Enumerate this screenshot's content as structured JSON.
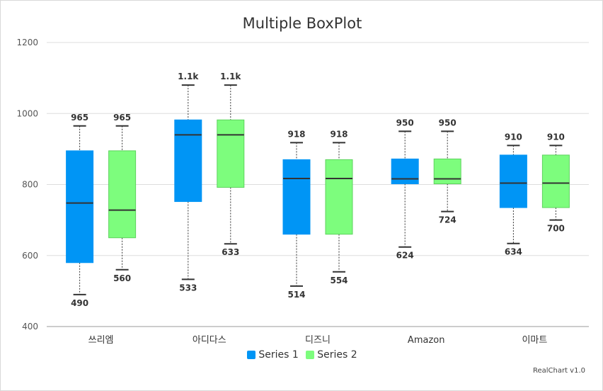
{
  "colors": {
    "series1": "#0095f5",
    "series2": "#7dfd7d",
    "series2_border": "#5ed35e",
    "grid": "#dddddd",
    "median": "#333333",
    "whisker": "#333333"
  },
  "credits": "RealChart v1.0",
  "chart_data": {
    "type": "boxplot",
    "title": "Multiple BoxPlot",
    "categories": [
      "쓰리엠",
      "아디다스",
      "디즈니",
      "Amazon",
      "이마트"
    ],
    "ylim": [
      400,
      1200
    ],
    "yticks": [
      400,
      600,
      800,
      1000,
      1200
    ],
    "grid": true,
    "legend_position": "bottom",
    "series": [
      {
        "name": "Series 1",
        "boxes": [
          {
            "min": 490,
            "q1": 580,
            "median": 748,
            "q3": 895,
            "max": 965,
            "min_label": "490",
            "max_label": "965"
          },
          {
            "min": 533,
            "q1": 752,
            "median": 940,
            "q3": 982,
            "max": 1080,
            "min_label": "533",
            "max_label": "1.1k"
          },
          {
            "min": 514,
            "q1": 660,
            "median": 817,
            "q3": 870,
            "max": 918,
            "min_label": "514",
            "max_label": "918"
          },
          {
            "min": 624,
            "q1": 802,
            "median": 816,
            "q3": 872,
            "max": 950,
            "min_label": "624",
            "max_label": "950"
          },
          {
            "min": 634,
            "q1": 735,
            "median": 804,
            "q3": 883,
            "max": 910,
            "min_label": "634",
            "max_label": "910"
          }
        ]
      },
      {
        "name": "Series 2",
        "boxes": [
          {
            "min": 560,
            "q1": 650,
            "median": 728,
            "q3": 895,
            "max": 965,
            "min_label": "560",
            "max_label": "965"
          },
          {
            "min": 633,
            "q1": 792,
            "median": 940,
            "q3": 982,
            "max": 1080,
            "min_label": "633",
            "max_label": "1.1k"
          },
          {
            "min": 554,
            "q1": 660,
            "median": 817,
            "q3": 870,
            "max": 918,
            "min_label": "554",
            "max_label": "918"
          },
          {
            "min": 724,
            "q1": 802,
            "median": 816,
            "q3": 872,
            "max": 950,
            "min_label": "724",
            "max_label": "950"
          },
          {
            "min": 700,
            "q1": 735,
            "median": 804,
            "q3": 883,
            "max": 910,
            "min_label": "700",
            "max_label": "910"
          }
        ]
      }
    ]
  }
}
